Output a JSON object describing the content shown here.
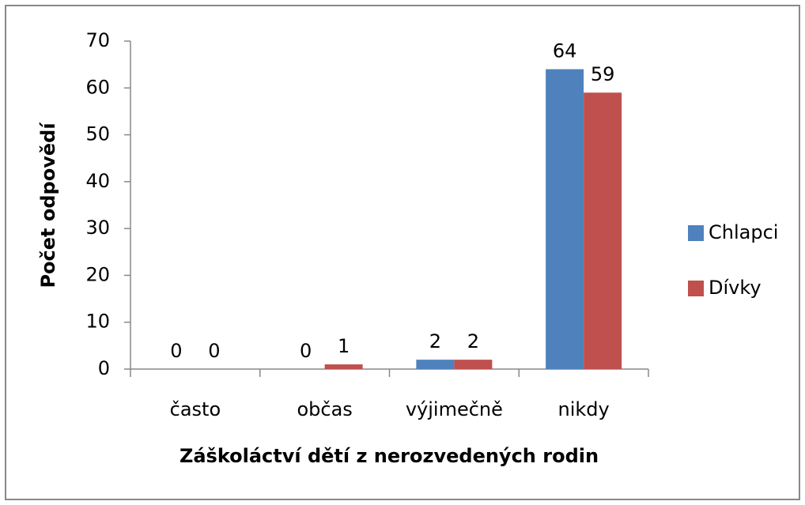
{
  "chart_data": {
    "type": "bar",
    "x_label": "Záškoláctví dětí z nerozvedených rodin",
    "y_label": "Počet odpovědí",
    "categories": [
      "často",
      "občas",
      "výjimečně",
      "nikdy"
    ],
    "series": [
      {
        "name": "Chlapci",
        "color": "#4f81bd",
        "values": [
          0,
          0,
          2,
          64
        ]
      },
      {
        "name": "Dívky",
        "color": "#c0504d",
        "values": [
          0,
          1,
          2,
          59
        ]
      }
    ],
    "ylim": [
      0,
      70
    ],
    "yticks": [
      0,
      10,
      20,
      30,
      40,
      50,
      60,
      70
    ],
    "legend": "right"
  }
}
